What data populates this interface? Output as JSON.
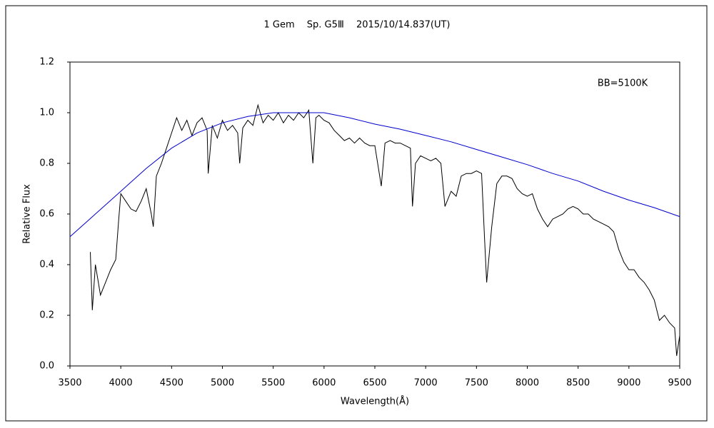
{
  "chart_data": {
    "type": "line",
    "title": "1 Gem　 Sp. G5Ⅲ　 2015/10/14.837(UT)",
    "xlabel": "Wavelength(Å)",
    "ylabel": "Relative Flux",
    "annotation": {
      "text": "BB=5100K",
      "color": "#0000cc"
    },
    "xlim": [
      3500,
      9500
    ],
    "xticks": [
      3500,
      4000,
      4500,
      5000,
      5500,
      6000,
      6500,
      7000,
      7500,
      8000,
      8500,
      9000,
      9500
    ],
    "ylim": [
      0,
      1.2
    ],
    "yticks": [
      {
        "value": 0,
        "label": "0.0"
      },
      0.2,
      0.4,
      0.6,
      0.8,
      {
        "value": 1,
        "label": "1.0"
      },
      1.2
    ],
    "grid": false,
    "series": [
      {
        "color": "#000000",
        "x": [
          3700,
          3720,
          3750,
          3800,
          3850,
          3900,
          3950,
          3980,
          4000,
          4050,
          4100,
          4150,
          4200,
          4250,
          4300,
          4320,
          4350,
          4400,
          4450,
          4500,
          4550,
          4600,
          4650,
          4700,
          4750,
          4800,
          4850,
          4860,
          4900,
          4950,
          5000,
          5050,
          5100,
          5150,
          5170,
          5200,
          5250,
          5300,
          5350,
          5400,
          5450,
          5500,
          5550,
          5600,
          5650,
          5700,
          5750,
          5800,
          5850,
          5890,
          5920,
          5950,
          6000,
          6050,
          6100,
          6150,
          6200,
          6250,
          6300,
          6350,
          6400,
          6450,
          6500,
          6563,
          6600,
          6650,
          6700,
          6750,
          6800,
          6850,
          6870,
          6900,
          6950,
          7000,
          7050,
          7100,
          7150,
          7190,
          7250,
          7300,
          7350,
          7400,
          7450,
          7500,
          7550,
          7580,
          7600,
          7650,
          7700,
          7750,
          7800,
          7850,
          7900,
          7950,
          8000,
          8050,
          8100,
          8150,
          8200,
          8250,
          8300,
          8350,
          8400,
          8450,
          8500,
          8550,
          8600,
          8650,
          8700,
          8750,
          8800,
          8850,
          8900,
          8950,
          9000,
          9050,
          9100,
          9150,
          9200,
          9250,
          9300,
          9350,
          9400,
          9450,
          9470,
          9500
        ],
        "values": [
          0.45,
          0.22,
          0.4,
          0.28,
          0.33,
          0.38,
          0.42,
          0.58,
          0.68,
          0.65,
          0.62,
          0.61,
          0.65,
          0.7,
          0.6,
          0.55,
          0.75,
          0.8,
          0.86,
          0.92,
          0.98,
          0.93,
          0.97,
          0.91,
          0.96,
          0.98,
          0.93,
          0.76,
          0.95,
          0.9,
          0.97,
          0.93,
          0.95,
          0.92,
          0.8,
          0.94,
          0.97,
          0.95,
          1.03,
          0.96,
          0.99,
          0.97,
          1.0,
          0.96,
          0.99,
          0.97,
          1.0,
          0.98,
          1.01,
          0.8,
          0.98,
          0.99,
          0.97,
          0.96,
          0.93,
          0.91,
          0.89,
          0.9,
          0.88,
          0.9,
          0.88,
          0.87,
          0.87,
          0.71,
          0.88,
          0.89,
          0.88,
          0.88,
          0.87,
          0.86,
          0.63,
          0.8,
          0.83,
          0.82,
          0.81,
          0.82,
          0.8,
          0.63,
          0.69,
          0.67,
          0.75,
          0.76,
          0.76,
          0.77,
          0.76,
          0.5,
          0.33,
          0.55,
          0.72,
          0.75,
          0.75,
          0.74,
          0.7,
          0.68,
          0.67,
          0.68,
          0.62,
          0.58,
          0.55,
          0.58,
          0.59,
          0.6,
          0.62,
          0.63,
          0.62,
          0.6,
          0.6,
          0.58,
          0.57,
          0.56,
          0.55,
          0.53,
          0.46,
          0.41,
          0.38,
          0.38,
          0.35,
          0.33,
          0.3,
          0.26,
          0.18,
          0.2,
          0.17,
          0.15,
          0.04,
          0.12
        ]
      },
      {
        "color": "#0000cc",
        "x": [
          3500,
          3750,
          4000,
          4250,
          4500,
          4750,
          5000,
          5250,
          5500,
          5750,
          6000,
          6250,
          6500,
          6750,
          7000,
          7250,
          7500,
          7750,
          8000,
          8250,
          8500,
          8750,
          9000,
          9250,
          9500
        ],
        "values": [
          0.51,
          0.6,
          0.69,
          0.78,
          0.86,
          0.92,
          0.96,
          0.985,
          1.0,
          1.0,
          1.0,
          0.98,
          0.955,
          0.935,
          0.91,
          0.885,
          0.855,
          0.825,
          0.795,
          0.76,
          0.73,
          0.69,
          0.655,
          0.625,
          0.59
        ]
      }
    ]
  }
}
